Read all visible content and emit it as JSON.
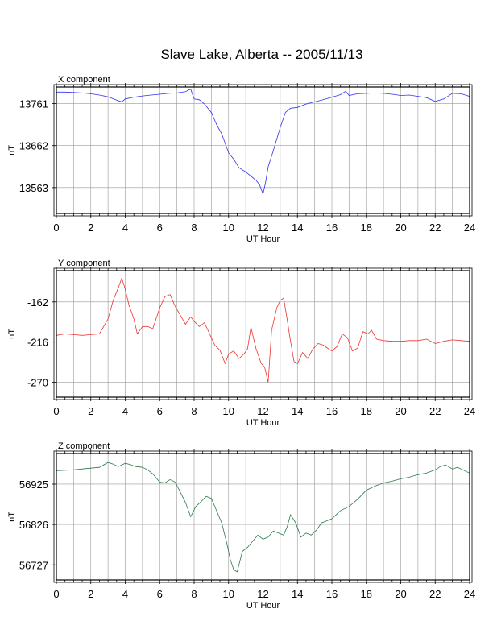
{
  "title": "Slave Lake, Alberta -- 2005/11/13",
  "chart_data": [
    {
      "type": "line",
      "panel_title": "X component",
      "xlabel": "UT Hour",
      "ylabel": "nT",
      "xlim": [
        0,
        24
      ],
      "ylim": [
        13502,
        13800
      ],
      "xticks": [
        "0",
        "2",
        "4",
        "6",
        "8",
        "10",
        "12",
        "14",
        "16",
        "18",
        "20",
        "22",
        "24"
      ],
      "yticks": [
        13761,
        13662,
        13563
      ],
      "grid": true,
      "series": [
        {
          "color": "#3333ee",
          "x": [
            0,
            0.5,
            1,
            1.5,
            2,
            2.5,
            3,
            3.5,
            3.8,
            4,
            4.5,
            5,
            5.5,
            6,
            6.5,
            7,
            7.5,
            7.8,
            8,
            8.3,
            8.6,
            9,
            9.3,
            9.6,
            10,
            10.3,
            10.6,
            11,
            11.3,
            11.6,
            11.8,
            12,
            12.15,
            12.3,
            12.6,
            13,
            13.3,
            13.6,
            14,
            14.5,
            15,
            15.5,
            16,
            16.5,
            16.8,
            17,
            17.5,
            18,
            18.5,
            19,
            19.5,
            20,
            20.5,
            21,
            21.5,
            22,
            22.5,
            23,
            23.5,
            24
          ],
          "y": [
            13788,
            13788,
            13787,
            13786,
            13784,
            13781,
            13777,
            13769,
            13765,
            13772,
            13776,
            13779,
            13781,
            13783,
            13785,
            13786,
            13789,
            13795,
            13772,
            13770,
            13760,
            13740,
            13712,
            13690,
            13645,
            13630,
            13610,
            13600,
            13590,
            13580,
            13570,
            13548,
            13575,
            13612,
            13650,
            13705,
            13740,
            13750,
            13752,
            13760,
            13765,
            13770,
            13776,
            13782,
            13790,
            13780,
            13784,
            13785,
            13786,
            13785,
            13783,
            13780,
            13781,
            13778,
            13775,
            13766,
            13772,
            13785,
            13784,
            13778
          ]
        }
      ]
    },
    {
      "type": "line",
      "panel_title": "Y component",
      "xlabel": "UT Hour",
      "ylabel": "nT",
      "xlim": [
        0,
        24
      ],
      "ylim": [
        -290,
        -120
      ],
      "xticks": [
        "0",
        "2",
        "4",
        "6",
        "8",
        "10",
        "12",
        "14",
        "16",
        "18",
        "20",
        "22",
        "24"
      ],
      "yticks": [
        -162,
        -216,
        -270
      ],
      "grid": true,
      "series": [
        {
          "color": "#ee3333",
          "x": [
            0,
            0.5,
            1,
            1.5,
            2,
            2.5,
            3,
            3.3,
            3.6,
            3.8,
            4,
            4.2,
            4.5,
            4.7,
            5,
            5.3,
            5.6,
            6,
            6.3,
            6.6,
            6.9,
            7.2,
            7.5,
            7.8,
            8,
            8.3,
            8.6,
            8.9,
            9.2,
            9.5,
            9.8,
            10,
            10.3,
            10.6,
            10.9,
            11.1,
            11.3,
            11.6,
            11.9,
            12.1,
            12.3,
            12.5,
            12.8,
            13,
            13.2,
            13.4,
            13.6,
            13.8,
            14,
            14.3,
            14.6,
            14.9,
            15.2,
            15.5,
            15.8,
            16,
            16.3,
            16.6,
            16.9,
            17.2,
            17.5,
            17.8,
            18.1,
            18.3,
            18.6,
            19,
            19.5,
            20,
            20.5,
            21,
            21.5,
            22,
            22.5,
            23,
            23.5,
            24
          ],
          "y": [
            -207,
            -205,
            -206,
            -207,
            -206,
            -205,
            -185,
            -160,
            -143,
            -130,
            -145,
            -165,
            -185,
            -205,
            -195,
            -195,
            -198,
            -170,
            -155,
            -152,
            -168,
            -180,
            -192,
            -182,
            -188,
            -195,
            -190,
            -205,
            -220,
            -227,
            -245,
            -232,
            -228,
            -238,
            -232,
            -225,
            -196,
            -225,
            -245,
            -250,
            -270,
            -200,
            -170,
            -160,
            -157,
            -185,
            -215,
            -242,
            -245,
            -230,
            -238,
            -225,
            -218,
            -220,
            -225,
            -228,
            -222,
            -205,
            -210,
            -228,
            -224,
            -202,
            -205,
            -200,
            -212,
            -214,
            -215,
            -215,
            -214,
            -214,
            -212,
            -218,
            -215,
            -213,
            -214,
            -215
          ]
        }
      ]
    },
    {
      "type": "line",
      "panel_title": "Z component",
      "xlabel": "UT Hour",
      "ylabel": "nT",
      "xlim": [
        0,
        24
      ],
      "ylim": [
        56690,
        57000
      ],
      "xticks": [
        "0",
        "2",
        "4",
        "6",
        "8",
        "10",
        "12",
        "14",
        "16",
        "18",
        "20",
        "22",
        "24"
      ],
      "yticks": [
        56925,
        56826,
        56727
      ],
      "grid": true,
      "series": [
        {
          "color": "#2a7a4a",
          "x": [
            0,
            0.5,
            1,
            1.5,
            2,
            2.5,
            3,
            3.3,
            3.6,
            4,
            4.3,
            4.6,
            5,
            5.3,
            5.6,
            6,
            6.3,
            6.6,
            6.9,
            7.2,
            7.5,
            7.8,
            8.1,
            8.4,
            8.7,
            9,
            9.3,
            9.6,
            9.9,
            10.1,
            10.3,
            10.5,
            10.8,
            11.1,
            11.4,
            11.7,
            12,
            12.3,
            12.6,
            12.9,
            13.2,
            13.4,
            13.6,
            13.9,
            14.2,
            14.5,
            14.8,
            15.1,
            15.4,
            15.7,
            16,
            16.5,
            17,
            17.5,
            18,
            18.5,
            19,
            19.5,
            20,
            20.5,
            21,
            21.5,
            22,
            22.3,
            22.6,
            23,
            23.3,
            23.6,
            24
          ],
          "y": [
            56958,
            56959,
            56960,
            56962,
            56964,
            56966,
            56978,
            56974,
            56968,
            56976,
            56973,
            56968,
            56966,
            56960,
            56950,
            56930,
            56928,
            56936,
            56930,
            56905,
            56880,
            56845,
            56870,
            56882,
            56895,
            56890,
            56860,
            56830,
            56780,
            56740,
            56715,
            56710,
            56760,
            56770,
            56785,
            56800,
            56790,
            56795,
            56810,
            56805,
            56800,
            56820,
            56850,
            56830,
            56795,
            56805,
            56800,
            56812,
            56830,
            56835,
            56840,
            56860,
            56870,
            56888,
            56910,
            56920,
            56928,
            56932,
            56938,
            56942,
            56948,
            56952,
            56960,
            56968,
            56972,
            56962,
            56966,
            56960,
            56952
          ]
        }
      ]
    }
  ]
}
